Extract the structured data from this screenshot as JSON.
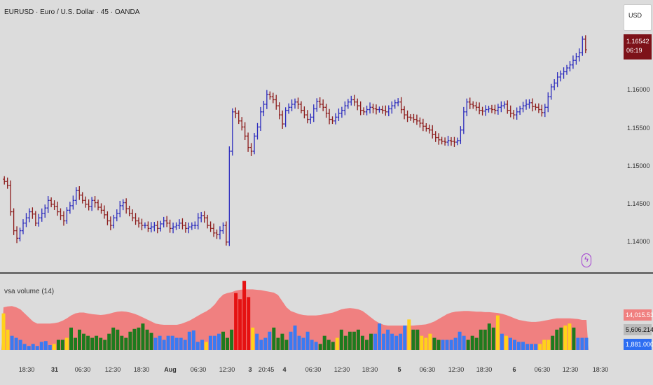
{
  "header": {
    "symbol_title": "EURUSD · Euro / U.S. Dollar · 45 · OANDA"
  },
  "controls": {
    "currency_button": "USD",
    "alert_icon": "lightning-icon"
  },
  "price_tag": {
    "price": "1.16542",
    "countdown": "06:19"
  },
  "indicator": {
    "title": "vsa volume (14)"
  },
  "volume_tags": {
    "red": "14,015.53571",
    "gray": "5,606.21429",
    "blue": "1,881.00000"
  },
  "colors": {
    "up_bar": "#2b2bbd",
    "down_bar": "#8b1a1a",
    "vol_red": "#e51212",
    "vol_yellow": "#ffd21a",
    "vol_green": "#1e7a1e",
    "vol_blue": "#3a7af2",
    "band": "#f08080",
    "price_tag": "#7d1219"
  },
  "chart_data": [
    {
      "type": "ohlc",
      "title": "",
      "y_axis_ticks": [
        "1.16000",
        "1.15500",
        "1.15000",
        "1.14500",
        "1.14000"
      ],
      "ylim": [
        1.1373,
        1.1692
      ],
      "x_tick_labels": [
        "18:30",
        "31",
        "06:30",
        "12:30",
        "18:30",
        "Aug",
        "06:30",
        "12:30",
        "3",
        "20:45",
        "4",
        "06:30",
        "12:30",
        "18:30",
        "5",
        "06:30",
        "12:30",
        "18:30",
        "6",
        "06:30",
        "12:30",
        "18:30"
      ],
      "close_series": [
        1.148,
        1.1475,
        1.144,
        1.1415,
        1.1405,
        1.1415,
        1.1425,
        1.1432,
        1.144,
        1.1437,
        1.1425,
        1.1432,
        1.1438,
        1.1445,
        1.1455,
        1.145,
        1.1447,
        1.144,
        1.1435,
        1.1428,
        1.1442,
        1.1448,
        1.1455,
        1.1468,
        1.1462,
        1.1455,
        1.145,
        1.1447,
        1.1455,
        1.1452,
        1.1446,
        1.1442,
        1.1436,
        1.1428,
        1.1422,
        1.1432,
        1.1438,
        1.1448,
        1.1452,
        1.1444,
        1.1438,
        1.1432,
        1.1428,
        1.1425,
        1.1422,
        1.1422,
        1.1418,
        1.142,
        1.1422,
        1.1418,
        1.1424,
        1.1428,
        1.1425,
        1.1418,
        1.142,
        1.1422,
        1.1425,
        1.1422,
        1.1418,
        1.142,
        1.1422,
        1.1422,
        1.1432,
        1.1435,
        1.1432,
        1.1422,
        1.1418,
        1.1412,
        1.141,
        1.1415,
        1.1422,
        1.14,
        1.152,
        1.1572,
        1.157,
        1.156,
        1.1552,
        1.154,
        1.1525,
        1.152,
        1.154,
        1.1552,
        1.1572,
        1.1582,
        1.1595,
        1.1592,
        1.1588,
        1.158,
        1.1568,
        1.1556,
        1.1574,
        1.1578,
        1.1582,
        1.1585,
        1.1582,
        1.1574,
        1.1568,
        1.1562,
        1.1565,
        1.1576,
        1.1586,
        1.1582,
        1.1578,
        1.157,
        1.1562,
        1.156,
        1.1565,
        1.157,
        1.1574,
        1.158,
        1.1585,
        1.1588,
        1.1585,
        1.158,
        1.1574,
        1.1572,
        1.1575,
        1.1578,
        1.1576,
        1.1575,
        1.1575,
        1.1574,
        1.1572,
        1.1576,
        1.158,
        1.1584,
        1.1585,
        1.1575,
        1.1568,
        1.1565,
        1.1564,
        1.1562,
        1.156,
        1.1557,
        1.1553,
        1.155,
        1.1548,
        1.1542,
        1.1538,
        1.1535,
        1.1533,
        1.1532,
        1.1534,
        1.1533,
        1.1532,
        1.1534,
        1.1548,
        1.1572,
        1.1585,
        1.1582,
        1.158,
        1.1578,
        1.1574,
        1.1573,
        1.1575,
        1.1576,
        1.1575,
        1.1574,
        1.1578,
        1.158,
        1.1582,
        1.1574,
        1.157,
        1.1568,
        1.1572,
        1.1576,
        1.158,
        1.1582,
        1.1584,
        1.1579,
        1.1578,
        1.1575,
        1.1571,
        1.1578,
        1.1592,
        1.1605,
        1.161,
        1.1618,
        1.1622,
        1.1625,
        1.163,
        1.1634,
        1.164,
        1.1645,
        1.165,
        1.1668,
        1.1654
      ]
    },
    {
      "type": "bar",
      "title": "vsa volume (14)",
      "band_series": [
        10500,
        10700,
        10800,
        10500,
        10000,
        9000,
        8000,
        7000,
        6500,
        6500,
        6500,
        6500,
        6600,
        6800,
        7200,
        7800,
        8500,
        9000,
        9200,
        9200,
        9000,
        8800,
        8700,
        8600,
        8700,
        8900,
        9200,
        9400,
        9500,
        9400,
        9200,
        8900,
        8500,
        8000,
        7500,
        7000,
        6500,
        6300,
        6200,
        6200,
        6200,
        6200,
        6400,
        6800,
        7200,
        7800,
        8400,
        9000,
        9500,
        10200,
        11200,
        12600,
        13600,
        14000,
        14200,
        14600,
        14800,
        14900,
        14900,
        14900,
        14800,
        14700,
        14500,
        14300,
        14100,
        13500,
        12000,
        10500,
        9600,
        9200,
        8800,
        8600,
        8500,
        8500,
        8500,
        8600,
        8800,
        9000,
        9200,
        9600,
        10000,
        10200,
        10300,
        10200,
        10000,
        9600,
        8800,
        8000,
        7200,
        6600,
        6200,
        6000,
        6000,
        6000,
        6000,
        6000,
        6000,
        6000,
        6100,
        6200,
        6300,
        6600,
        7000,
        7600,
        8200,
        8800,
        9200,
        9400,
        9500,
        9600,
        9600,
        9500,
        9400,
        9400,
        9300,
        9300,
        9200,
        9100,
        8900,
        8600,
        8200,
        7800,
        7400,
        7200,
        7000,
        6900,
        6900,
        7000,
        7200,
        7400,
        7600,
        7800,
        7800,
        7800,
        7800,
        7700,
        7600,
        7400,
        7400
      ],
      "values": [
        9000,
        5000,
        3500,
        3000,
        2500,
        1500,
        1000,
        1500,
        1000,
        2000,
        2200,
        1200,
        1500,
        2500,
        2500,
        3000,
        5500,
        3000,
        5000,
        4000,
        3500,
        3000,
        3500,
        3000,
        2500,
        4000,
        5500,
        5000,
        3500,
        3000,
        4500,
        5200,
        5500,
        6500,
        5000,
        4200,
        3000,
        3500,
        2500,
        3500,
        3500,
        3000,
        3000,
        2500,
        4500,
        4800,
        2000,
        2500,
        2000,
        3500,
        3500,
        4000,
        4500,
        3000,
        5000,
        14000,
        12500,
        17000,
        13000,
        5500,
        4000,
        2500,
        3000,
        4500,
        5500,
        3000,
        4000,
        2500,
        4500,
        6000,
        3500,
        3000,
        4500,
        2500,
        2000,
        1500,
        3500,
        2500,
        2000,
        3000,
        5000,
        3500,
        4500,
        4500,
        5000,
        3500,
        2500,
        4000,
        4000,
        6500,
        4000,
        5000,
        4000,
        3500,
        4000,
        6000,
        7500,
        5000,
        5000,
        3500,
        3000,
        4000,
        3000,
        2500,
        2500,
        2500,
        2500,
        3000,
        4500,
        3500,
        2500,
        3500,
        3000,
        5000,
        5000,
        6500,
        5500,
        8500,
        4000,
        3500,
        3000,
        2500,
        2000,
        2000,
        1500,
        1500,
        1500,
        1500,
        2500,
        2500,
        3500,
        5000,
        5500,
        6000,
        6500,
        5500,
        3000,
        3000,
        3000
      ],
      "value_colors": [
        "yellow",
        "yellow",
        "blue",
        "blue",
        "blue",
        "blue",
        "blue",
        "blue",
        "blue",
        "blue",
        "blue",
        "blue",
        "yellow",
        "green",
        "green",
        "yellow",
        "green",
        "green",
        "green",
        "green",
        "green",
        "green",
        "green",
        "green",
        "green",
        "green",
        "green",
        "green",
        "green",
        "green",
        "green",
        "green",
        "green",
        "green",
        "green",
        "green",
        "blue",
        "blue",
        "blue",
        "blue",
        "blue",
        "blue",
        "blue",
        "blue",
        "blue",
        "blue",
        "blue",
        "blue",
        "yellow",
        "blue",
        "blue",
        "blue",
        "green",
        "green",
        "green",
        "red",
        "red",
        "red",
        "red",
        "yellow",
        "blue",
        "blue",
        "blue",
        "blue",
        "green",
        "green",
        "green",
        "green",
        "blue",
        "blue",
        "blue",
        "blue",
        "blue",
        "blue",
        "blue",
        "green",
        "green",
        "green",
        "green",
        "yellow",
        "green",
        "green",
        "green",
        "green",
        "green",
        "green",
        "green",
        "green",
        "blue",
        "blue",
        "blue",
        "blue",
        "blue",
        "blue",
        "blue",
        "blue",
        "yellow",
        "green",
        "green",
        "yellow",
        "yellow",
        "yellow",
        "green",
        "green",
        "blue",
        "blue",
        "blue",
        "blue",
        "blue",
        "blue",
        "green",
        "green",
        "green",
        "green",
        "green",
        "green",
        "green",
        "yellow",
        "blue",
        "yellow",
        "blue",
        "blue",
        "blue",
        "blue",
        "blue",
        "blue",
        "blue",
        "yellow",
        "yellow",
        "yellow",
        "green",
        "green",
        "green",
        "yellow",
        "yellow",
        "green",
        "blue",
        "blue",
        "blue"
      ]
    }
  ]
}
